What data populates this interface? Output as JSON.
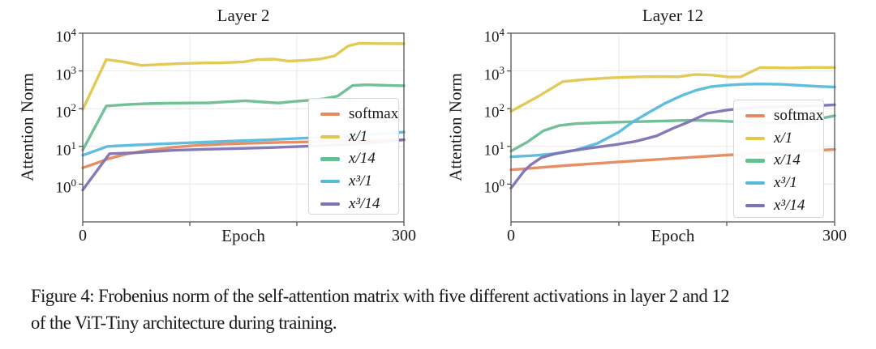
{
  "figure": {
    "caption_line1": "Figure 4: Frobenius norm of the self-attention matrix with five different activations in layer 2 and 12",
    "caption_line2": "of the ViT-Tiny architecture during training."
  },
  "colors": {
    "softmax": "#e5895f",
    "x1": "#e2c74e",
    "x14": "#69bd92",
    "x3_1": "#56b9dc",
    "x3_14": "#7e73b5",
    "grid": "#e7e7e7",
    "spine": "#555555",
    "text": "#1a1a1a"
  },
  "legend": {
    "entries": [
      {
        "key": "softmax",
        "label": "softmax",
        "math": false,
        "color": "#e5895f"
      },
      {
        "key": "x1",
        "label": "x/1",
        "math": true,
        "color": "#e2c74e"
      },
      {
        "key": "x14",
        "label": "x/14",
        "math": true,
        "color": "#69bd92"
      },
      {
        "key": "x3_1",
        "label": "x³/1",
        "math": true,
        "color": "#56b9dc"
      },
      {
        "key": "x3_14",
        "label": "x³/14",
        "math": true,
        "color": "#7e73b5"
      }
    ]
  },
  "axes": {
    "y_ticks": [
      {
        "base": "10",
        "exp": "0"
      },
      {
        "base": "10",
        "exp": "1"
      },
      {
        "base": "10",
        "exp": "2"
      },
      {
        "base": "10",
        "exp": "3"
      },
      {
        "base": "10",
        "exp": "4"
      }
    ],
    "x_ticks": [
      {
        "value": 0,
        "label": "0"
      },
      {
        "value": 100,
        "label": ""
      },
      {
        "value": 200,
        "label": ""
      },
      {
        "value": 300,
        "label": "300"
      }
    ]
  },
  "chart_data": [
    {
      "type": "line",
      "title": "Layer 2",
      "xlabel": "Epoch",
      "ylabel": "Attention Norm",
      "xscale": "linear",
      "yscale": "log",
      "xlim": [
        0,
        300
      ],
      "ylim": [
        0.1,
        10000
      ],
      "grid": true,
      "legend_position": "lower right inset",
      "series": [
        {
          "name": "softmax",
          "color": "#e5895f",
          "points": [
            [
              0,
              2.7
            ],
            [
              25,
              4.8
            ],
            [
              40,
              6.2
            ],
            [
              60,
              7.8
            ],
            [
              85,
              9.5
            ],
            [
              110,
              10.8
            ],
            [
              135,
              11.6
            ],
            [
              160,
              12.2
            ],
            [
              185,
              12.8
            ],
            [
              210,
              13.2
            ],
            [
              235,
              13.6
            ],
            [
              260,
              14.1
            ],
            [
              280,
              14.5
            ],
            [
              300,
              15
            ]
          ]
        },
        {
          "name": "x/1",
          "color": "#e2c74e",
          "points": [
            [
              0,
              95
            ],
            [
              22,
              2000
            ],
            [
              38,
              1750
            ],
            [
              55,
              1400
            ],
            [
              70,
              1480
            ],
            [
              90,
              1560
            ],
            [
              110,
              1620
            ],
            [
              130,
              1650
            ],
            [
              150,
              1740
            ],
            [
              163,
              2000
            ],
            [
              178,
              2060
            ],
            [
              192,
              1830
            ],
            [
              207,
              1900
            ],
            [
              222,
              2080
            ],
            [
              235,
              2500
            ],
            [
              248,
              4600
            ],
            [
              258,
              5400
            ],
            [
              275,
              5300
            ],
            [
              300,
              5250
            ]
          ]
        },
        {
          "name": "x/14",
          "color": "#69bd92",
          "points": [
            [
              0,
              8
            ],
            [
              22,
              118
            ],
            [
              40,
              128
            ],
            [
              60,
              136
            ],
            [
              80,
              139
            ],
            [
              100,
              141
            ],
            [
              118,
              143
            ],
            [
              135,
              152
            ],
            [
              152,
              162
            ],
            [
              168,
              150
            ],
            [
              183,
              141
            ],
            [
              198,
              156
            ],
            [
              212,
              167
            ],
            [
              225,
              182
            ],
            [
              238,
              215
            ],
            [
              252,
              410
            ],
            [
              265,
              430
            ],
            [
              285,
              415
            ],
            [
              300,
              405
            ]
          ]
        },
        {
          "name": "x³/1",
          "color": "#56b9dc",
          "points": [
            [
              0,
              5.8
            ],
            [
              23,
              10
            ],
            [
              50,
              11
            ],
            [
              85,
              12
            ],
            [
              115,
              13
            ],
            [
              145,
              14
            ],
            [
              175,
              15
            ],
            [
              205,
              16.5
            ],
            [
              235,
              18
            ],
            [
              265,
              20.5
            ],
            [
              285,
              22
            ],
            [
              300,
              24
            ]
          ]
        },
        {
          "name": "x³/14",
          "color": "#7e73b5",
          "points": [
            [
              0,
              0.7
            ],
            [
              25,
              6.4
            ],
            [
              50,
              6.8
            ],
            [
              85,
              7.9
            ],
            [
              115,
              8.4
            ],
            [
              145,
              8.8
            ],
            [
              175,
              9.3
            ],
            [
              205,
              10
            ],
            [
              235,
              10.8
            ],
            [
              265,
              12
            ],
            [
              285,
              13.5
            ],
            [
              300,
              15
            ]
          ]
        }
      ]
    },
    {
      "type": "line",
      "title": "Layer 12",
      "xlabel": "Epoch",
      "ylabel": "Attention Norm",
      "xscale": "linear",
      "yscale": "log",
      "xlim": [
        0,
        300
      ],
      "ylim": [
        0.1,
        10000
      ],
      "grid": true,
      "legend_position": "lower right inset",
      "series": [
        {
          "name": "softmax",
          "color": "#e5895f",
          "points": [
            [
              0,
              2.4
            ],
            [
              50,
              3.1
            ],
            [
              100,
              3.9
            ],
            [
              150,
              4.8
            ],
            [
              200,
              5.9
            ],
            [
              250,
              7
            ],
            [
              300,
              8.3
            ]
          ]
        },
        {
          "name": "x/1",
          "color": "#e2c74e",
          "points": [
            [
              0,
              85
            ],
            [
              25,
              210
            ],
            [
              48,
              520
            ],
            [
              70,
              600
            ],
            [
              95,
              665
            ],
            [
              120,
              700
            ],
            [
              140,
              710
            ],
            [
              155,
              700
            ],
            [
              170,
              800
            ],
            [
              185,
              780
            ],
            [
              202,
              690
            ],
            [
              213,
              700
            ],
            [
              231,
              1230
            ],
            [
              260,
              1200
            ],
            [
              280,
              1240
            ],
            [
              300,
              1230
            ]
          ]
        },
        {
          "name": "x/14",
          "color": "#69bd92",
          "points": [
            [
              0,
              7.5
            ],
            [
              15,
              13
            ],
            [
              30,
              26
            ],
            [
              45,
              36
            ],
            [
              60,
              40
            ],
            [
              85,
              43
            ],
            [
              110,
              45
            ],
            [
              140,
              47
            ],
            [
              165,
              49
            ],
            [
              190,
              48
            ],
            [
              210,
              45
            ],
            [
              230,
              43
            ],
            [
              250,
              41
            ],
            [
              265,
              42
            ],
            [
              280,
              50
            ],
            [
              300,
              65
            ]
          ]
        },
        {
          "name": "x³/1",
          "color": "#56b9dc",
          "points": [
            [
              0,
              5.3
            ],
            [
              20,
              5.7
            ],
            [
              40,
              6.4
            ],
            [
              60,
              8
            ],
            [
              80,
              12
            ],
            [
              100,
              24
            ],
            [
              113,
              45
            ],
            [
              128,
              80
            ],
            [
              143,
              140
            ],
            [
              158,
              220
            ],
            [
              172,
              310
            ],
            [
              186,
              385
            ],
            [
              200,
              420
            ],
            [
              215,
              442
            ],
            [
              232,
              452
            ],
            [
              250,
              442
            ],
            [
              268,
              415
            ],
            [
              285,
              390
            ],
            [
              300,
              375
            ]
          ]
        },
        {
          "name": "x³/14",
          "color": "#7e73b5",
          "points": [
            [
              0,
              0.78
            ],
            [
              12,
              2.2
            ],
            [
              18,
              3.2
            ],
            [
              28,
              5
            ],
            [
              40,
              6.3
            ],
            [
              55,
              7.5
            ],
            [
              70,
              8.8
            ],
            [
              85,
              10
            ],
            [
              100,
              11.5
            ],
            [
              115,
              13.5
            ],
            [
              125,
              16
            ],
            [
              135,
              19
            ],
            [
              150,
              30
            ],
            [
              165,
              45
            ],
            [
              182,
              75
            ],
            [
              200,
              92
            ],
            [
              215,
              102
            ],
            [
              230,
              108
            ],
            [
              250,
              113
            ],
            [
              270,
              117
            ],
            [
              285,
              120
            ],
            [
              300,
              127
            ]
          ]
        }
      ]
    }
  ]
}
